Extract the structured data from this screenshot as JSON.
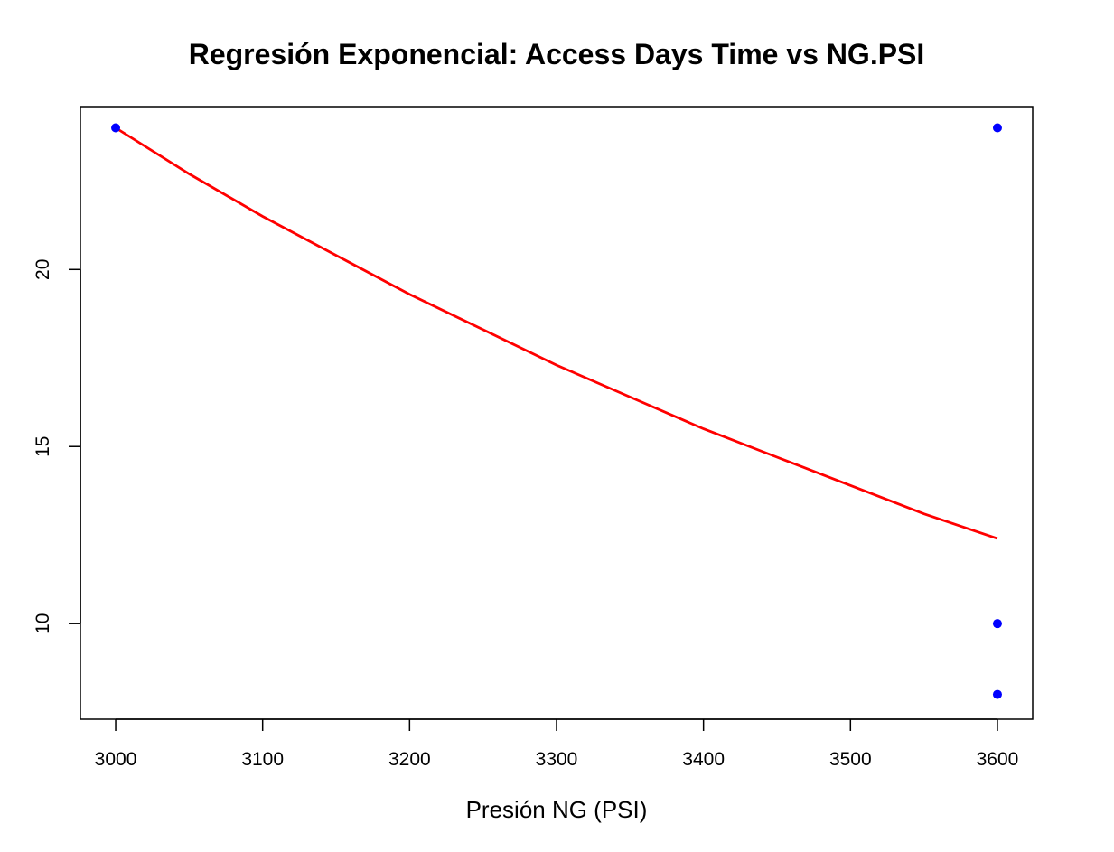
{
  "chart_data": {
    "type": "scatter",
    "title": "Regresión Exponencial: Access Days Time vs NG.PSI",
    "xlabel": "Presión NG (PSI)",
    "ylabel": "",
    "xlim": [
      2976,
      3624
    ],
    "ylim": [
      7.3,
      24.6
    ],
    "x_ticks": [
      3000,
      3100,
      3200,
      3300,
      3400,
      3500,
      3600
    ],
    "y_ticks": [
      10,
      15,
      20
    ],
    "grid": false,
    "legend": "none",
    "series": [
      {
        "type": "scatter",
        "color": "#0000ff",
        "points": [
          [
            3000,
            24
          ],
          [
            3600,
            24
          ],
          [
            3600,
            10
          ],
          [
            3600,
            8
          ]
        ]
      },
      {
        "type": "line",
        "color": "#ff0000",
        "model": "exponential",
        "x": [
          3000,
          3050,
          3100,
          3150,
          3200,
          3250,
          3300,
          3350,
          3400,
          3450,
          3500,
          3550,
          3600
        ],
        "y": [
          24.0,
          22.7,
          21.5,
          20.4,
          19.3,
          18.3,
          17.3,
          16.4,
          15.5,
          14.7,
          13.9,
          13.1,
          12.4
        ]
      }
    ]
  }
}
